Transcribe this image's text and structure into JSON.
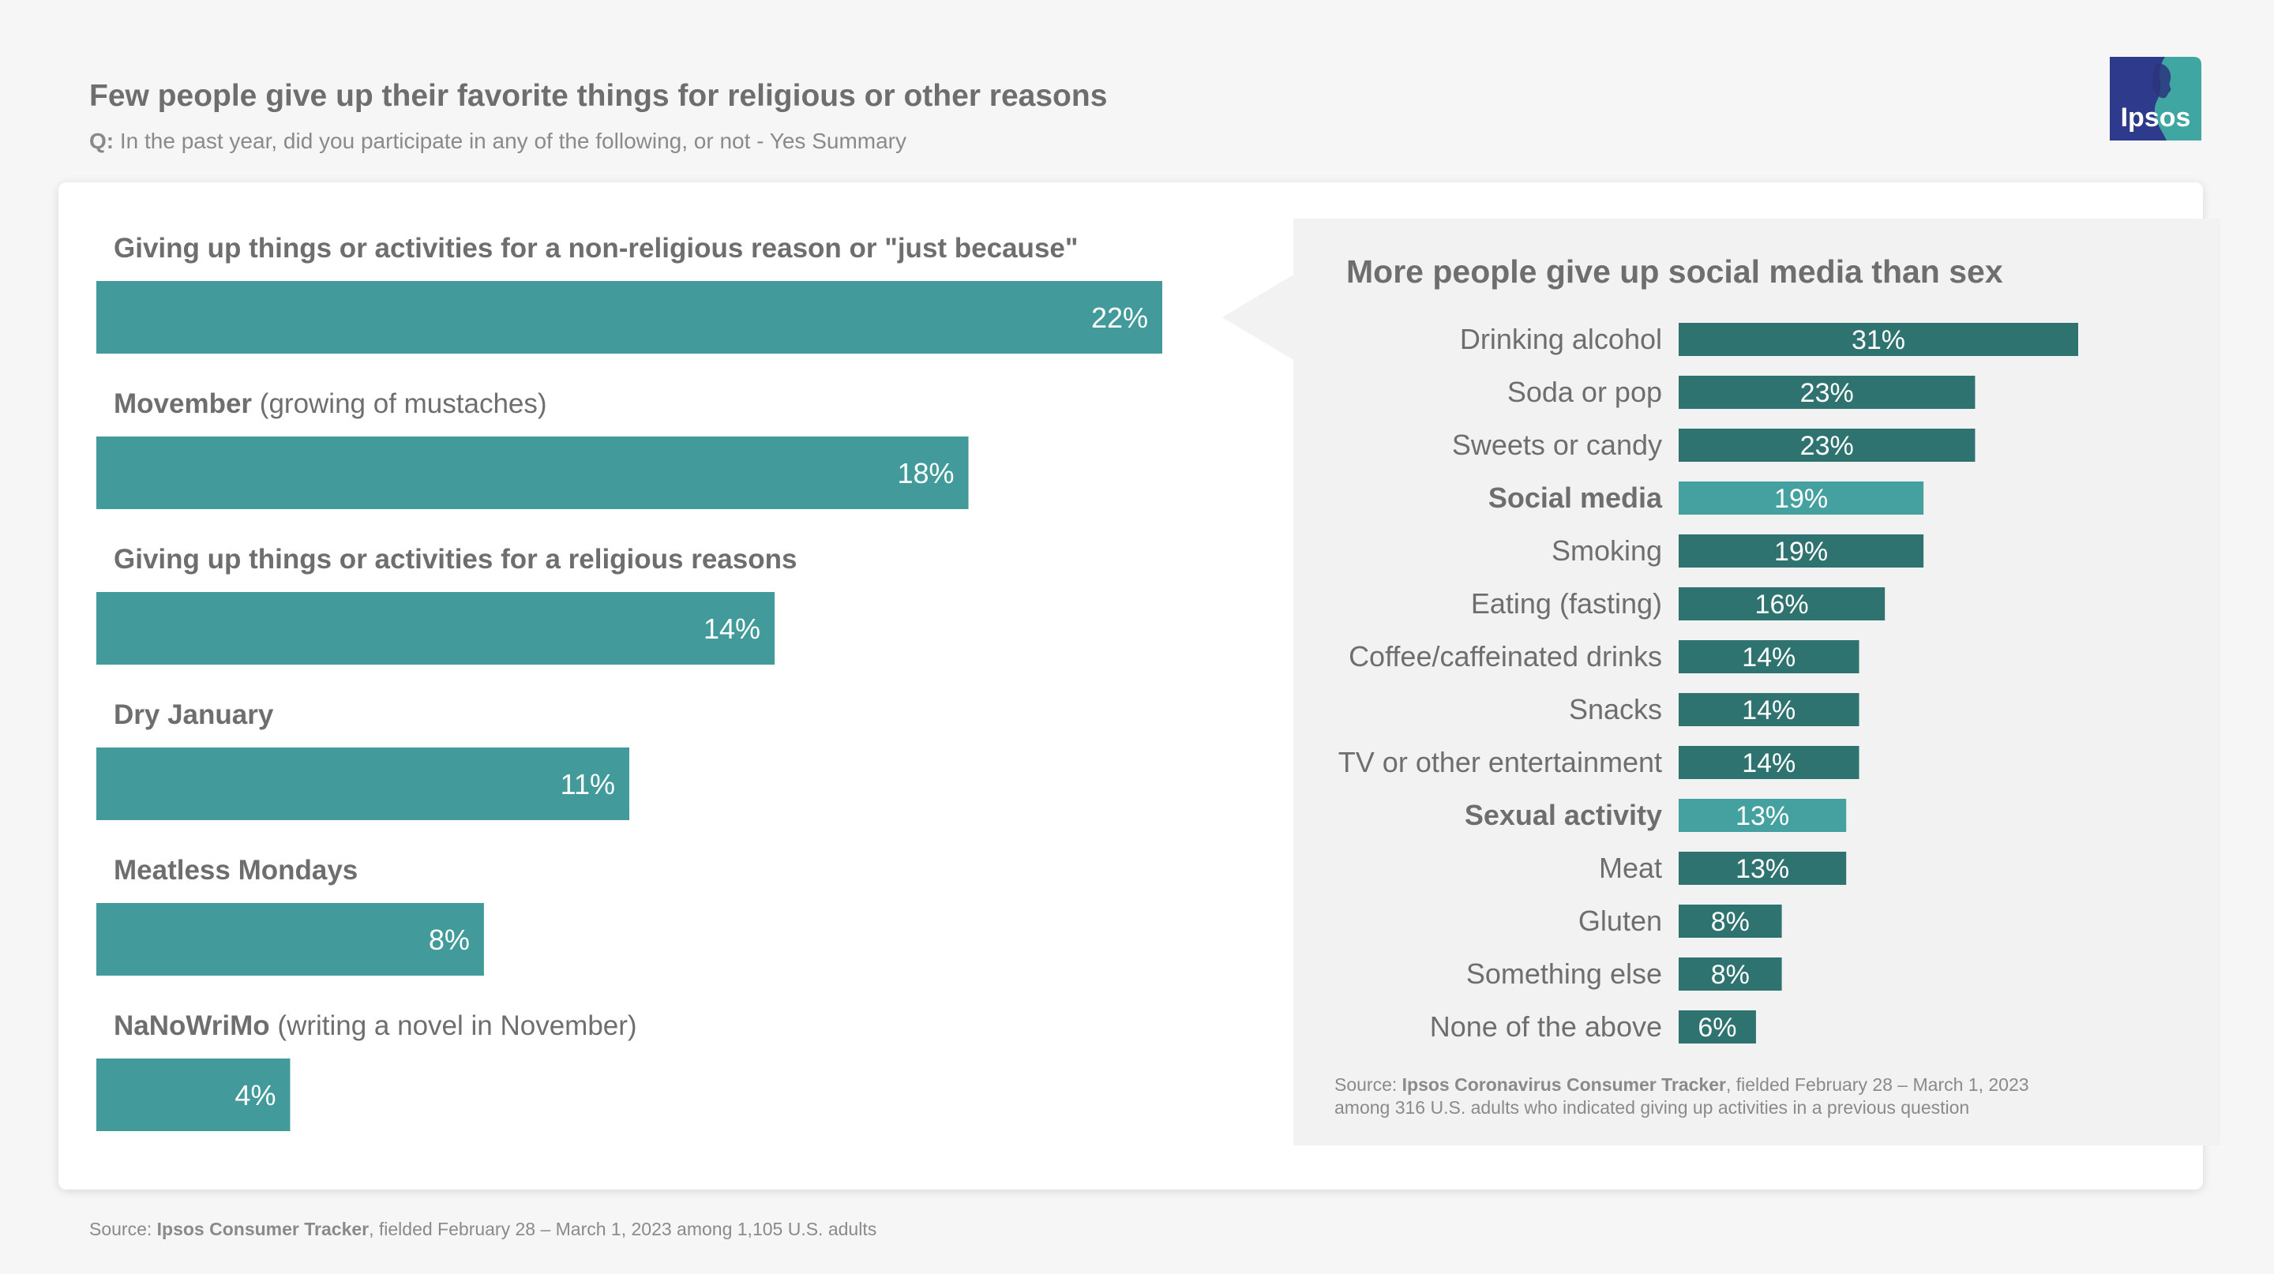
{
  "header": {
    "title": "Few people give up their favorite things for religious or other reasons",
    "question_prefix": "Q:",
    "question_text": " In the past year, did you participate in any of the following, or not - Yes Summary"
  },
  "logo": {
    "text": "Ipsos"
  },
  "colors": {
    "bar_main": "#429b9a",
    "bar_dark": "#2f7371",
    "bar_highlight": "#45a19f",
    "label": "#6e6e6e"
  },
  "chart_data": [
    {
      "type": "bar",
      "orientation": "horizontal",
      "title": "Few people give up their favorite things for religious or other reasons",
      "categories": [
        {
          "bold": "Giving up things or activities for a non-religious reason or \"just because\"",
          "rest": ""
        },
        {
          "bold": "Movember",
          "rest": " (growing of mustaches)"
        },
        {
          "bold": "Giving up things or activities for a religious reasons",
          "rest": ""
        },
        {
          "bold": "Dry January",
          "rest": ""
        },
        {
          "bold": "Meatless Mondays",
          "rest": ""
        },
        {
          "bold": "NaNoWriMo",
          "rest": " (writing a novel in November)"
        }
      ],
      "values": [
        22,
        18,
        14,
        11,
        8,
        4
      ],
      "value_labels": [
        "22%",
        "18%",
        "14%",
        "11%",
        "8%",
        "4%"
      ],
      "unit": "%",
      "xlim": [
        0,
        22
      ]
    },
    {
      "type": "bar",
      "orientation": "horizontal",
      "title": "More people give up social media than sex",
      "categories": [
        "Drinking alcohol",
        "Soda or pop",
        "Sweets or candy",
        "Social media",
        "Smoking",
        "Eating (fasting)",
        "Coffee/caffeinated drinks",
        "Snacks",
        "TV or other entertainment",
        "Sexual activity",
        "Meat",
        "Gluten",
        "Something else",
        "None of the above"
      ],
      "values": [
        31,
        23,
        23,
        19,
        19,
        16,
        14,
        14,
        14,
        13,
        13,
        8,
        8,
        6
      ],
      "value_labels": [
        "31%",
        "23%",
        "23%",
        "19%",
        "19%",
        "16%",
        "14%",
        "14%",
        "14%",
        "13%",
        "13%",
        "8%",
        "8%",
        "6%"
      ],
      "highlighted": [
        "Social media",
        "Sexual activity"
      ],
      "unit": "%",
      "xlim": [
        0,
        31
      ]
    }
  ],
  "panel_source": {
    "prefix": "Source: ",
    "name": "Ipsos Coronavirus Consumer Tracker",
    "line1_rest": ", fielded February 28 – March 1, 2023",
    "line2": "among 316 U.S. adults who indicated giving up activities in a previous question"
  },
  "footer": {
    "prefix": "Source: ",
    "name": "Ipsos Consumer Tracker",
    "rest": ", fielded February 28 – March 1, 2023 among 1,105 U.S. adults"
  }
}
